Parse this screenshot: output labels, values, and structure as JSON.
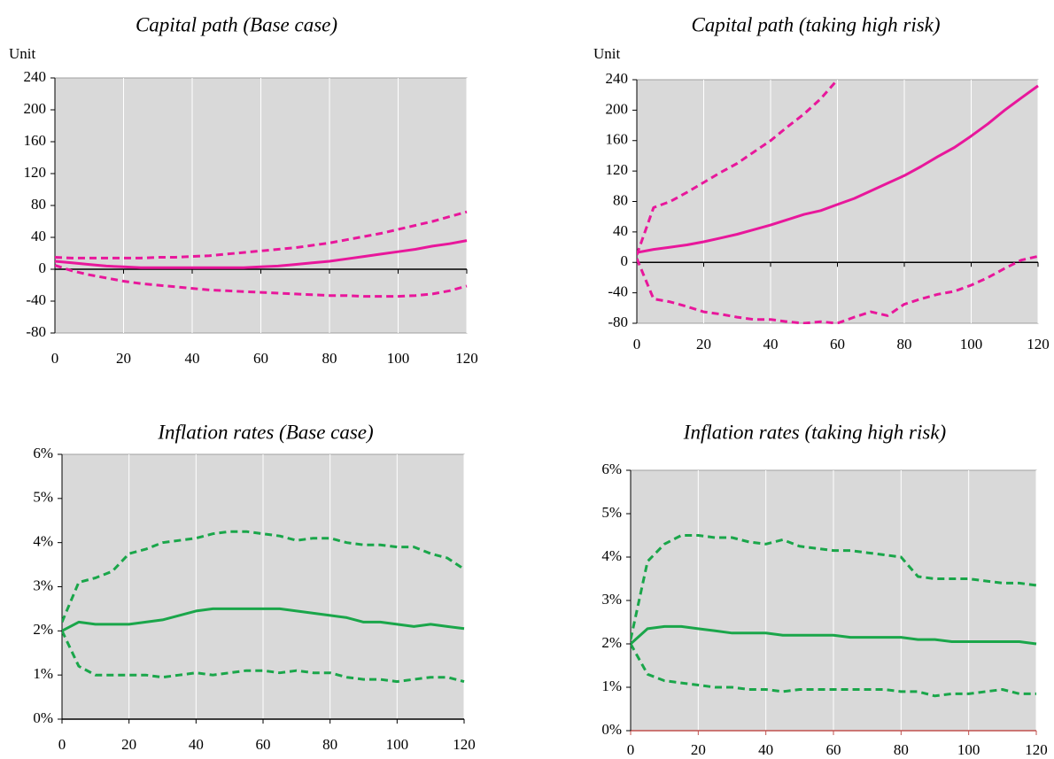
{
  "chart_data": [
    {
      "type": "line",
      "title": "Capital path (Base case)",
      "ylabel": "Unit",
      "x": [
        0,
        5,
        10,
        15,
        20,
        25,
        30,
        35,
        40,
        45,
        50,
        55,
        60,
        65,
        70,
        75,
        80,
        85,
        90,
        95,
        100,
        105,
        110,
        115,
        120
      ],
      "xlim": [
        0,
        120
      ],
      "xticks": [
        0,
        20,
        40,
        60,
        80,
        100,
        120
      ],
      "ylim": [
        -80,
        240
      ],
      "yticks": [
        -80,
        -40,
        0,
        40,
        80,
        120,
        160,
        200,
        240
      ],
      "grid": "x",
      "plot_bg": "#d9d9d9",
      "axis_color": "#000000",
      "series": [
        {
          "color": "#e8179b",
          "dashed": false,
          "values": [
            10,
            8,
            6,
            4,
            3,
            2,
            2,
            2,
            2,
            2,
            2,
            2,
            3,
            4,
            6,
            8,
            10,
            13,
            16,
            19,
            22,
            25,
            29,
            32,
            36
          ]
        },
        {
          "color": "#e8179b",
          "dashed": true,
          "values": [
            15,
            14,
            14,
            14,
            14,
            14,
            15,
            15,
            16,
            17,
            19,
            21,
            23,
            25,
            27,
            30,
            33,
            37,
            41,
            45,
            50,
            55,
            60,
            66,
            72
          ]
        },
        {
          "color": "#e8179b",
          "dashed": true,
          "values": [
            5,
            -2,
            -7,
            -11,
            -15,
            -18,
            -20,
            -22,
            -24,
            -26,
            -27,
            -28,
            -29,
            -30,
            -31,
            -32,
            -33,
            -33,
            -34,
            -34,
            -34,
            -33,
            -31,
            -27,
            -21
          ]
        }
      ]
    },
    {
      "type": "line",
      "title": "Capital path (taking high risk)",
      "ylabel": "Unit",
      "x": [
        0,
        5,
        10,
        15,
        20,
        25,
        30,
        35,
        40,
        45,
        50,
        55,
        60,
        65,
        70,
        75,
        80,
        85,
        90,
        95,
        100,
        105,
        110,
        115,
        120
      ],
      "xlim": [
        0,
        120
      ],
      "xticks": [
        0,
        20,
        40,
        60,
        80,
        100,
        120
      ],
      "ylim": [
        -80,
        240
      ],
      "yticks": [
        -80,
        -40,
        0,
        40,
        80,
        120,
        160,
        200,
        240
      ],
      "grid": "x",
      "plot_bg": "#d9d9d9",
      "axis_color": "#000000",
      "series": [
        {
          "color": "#e8179b",
          "dashed": false,
          "values": [
            13,
            17,
            20,
            23,
            27,
            32,
            37,
            43,
            49,
            56,
            63,
            68,
            76,
            84,
            94,
            104,
            114,
            126,
            139,
            151,
            166,
            182,
            200,
            216,
            232
          ]
        },
        {
          "color": "#e8179b",
          "dashed": true,
          "values": [
            10,
            72,
            80,
            92,
            105,
            118,
            130,
            145,
            160,
            178,
            195,
            215,
            240,
            null,
            null,
            null,
            null,
            null,
            null,
            null,
            null,
            null,
            null,
            null,
            null
          ]
        },
        {
          "color": "#e8179b",
          "dashed": true,
          "values": [
            5,
            -48,
            -52,
            -58,
            -65,
            -68,
            -72,
            -75,
            -75,
            -78,
            -80,
            -78,
            -80,
            -72,
            -65,
            -70,
            -55,
            -48,
            -42,
            -38,
            -30,
            -20,
            -8,
            3,
            8
          ]
        }
      ]
    },
    {
      "type": "line",
      "title": "Inflation rates (Base case)",
      "x": [
        0,
        5,
        10,
        15,
        20,
        25,
        30,
        35,
        40,
        45,
        50,
        55,
        60,
        65,
        70,
        75,
        80,
        85,
        90,
        95,
        100,
        105,
        110,
        115,
        120
      ],
      "xlim": [
        0,
        120
      ],
      "xticks": [
        0,
        20,
        40,
        60,
        80,
        100,
        120
      ],
      "ylim": [
        0,
        6
      ],
      "yticks": [
        {
          "value": 0,
          "label": "0%"
        },
        {
          "value": 1,
          "label": "1%"
        },
        {
          "value": 2,
          "label": "2%"
        },
        {
          "value": 3,
          "label": "3%"
        },
        {
          "value": 4,
          "label": "4%"
        },
        {
          "value": 5,
          "label": "5%"
        },
        {
          "value": 6,
          "label": "6%"
        }
      ],
      "grid": "x",
      "plot_bg": "#d9d9d9",
      "axis_color": "#000000",
      "series": [
        {
          "color": "#1aa64a",
          "dashed": false,
          "values": [
            2.0,
            2.2,
            2.15,
            2.15,
            2.15,
            2.2,
            2.25,
            2.35,
            2.45,
            2.5,
            2.5,
            2.5,
            2.5,
            2.5,
            2.45,
            2.4,
            2.35,
            2.3,
            2.2,
            2.2,
            2.15,
            2.1,
            2.15,
            2.1,
            2.05
          ]
        },
        {
          "color": "#1aa64a",
          "dashed": true,
          "values": [
            2.2,
            3.1,
            3.2,
            3.35,
            3.75,
            3.85,
            4.0,
            4.05,
            4.1,
            4.2,
            4.25,
            4.25,
            4.2,
            4.15,
            4.05,
            4.1,
            4.1,
            4.0,
            3.95,
            3.95,
            3.9,
            3.9,
            3.75,
            3.65,
            3.4
          ]
        },
        {
          "color": "#1aa64a",
          "dashed": true,
          "values": [
            2.0,
            1.2,
            1.0,
            1.0,
            1.0,
            1.0,
            0.95,
            1.0,
            1.05,
            1.0,
            1.05,
            1.1,
            1.1,
            1.05,
            1.1,
            1.05,
            1.05,
            0.95,
            0.9,
            0.9,
            0.85,
            0.9,
            0.95,
            0.95,
            0.85
          ]
        }
      ]
    },
    {
      "type": "line",
      "title": "Inflation rates (taking high risk)",
      "x": [
        0,
        5,
        10,
        15,
        20,
        25,
        30,
        35,
        40,
        45,
        50,
        55,
        60,
        65,
        70,
        75,
        80,
        85,
        90,
        95,
        100,
        105,
        110,
        115,
        120
      ],
      "xlim": [
        0,
        120
      ],
      "xticks": [
        0,
        20,
        40,
        60,
        80,
        100,
        120
      ],
      "ylim": [
        0,
        6
      ],
      "yticks": [
        {
          "value": 0,
          "label": "0%"
        },
        {
          "value": 1,
          "label": "1%"
        },
        {
          "value": 2,
          "label": "2%"
        },
        {
          "value": 3,
          "label": "3%"
        },
        {
          "value": 4,
          "label": "4%"
        },
        {
          "value": 5,
          "label": "5%"
        },
        {
          "value": 6,
          "label": "6%"
        }
      ],
      "grid": "x",
      "plot_bg": "#d9d9d9",
      "axis_color": "#c0504d",
      "series": [
        {
          "color": "#1aa64a",
          "dashed": false,
          "values": [
            2.0,
            2.35,
            2.4,
            2.4,
            2.35,
            2.3,
            2.25,
            2.25,
            2.25,
            2.2,
            2.2,
            2.2,
            2.2,
            2.15,
            2.15,
            2.15,
            2.15,
            2.1,
            2.1,
            2.05,
            2.05,
            2.05,
            2.05,
            2.05,
            2.0
          ]
        },
        {
          "color": "#1aa64a",
          "dashed": true,
          "values": [
            2.1,
            3.9,
            4.3,
            4.5,
            4.5,
            4.45,
            4.45,
            4.35,
            4.3,
            4.4,
            4.25,
            4.2,
            4.15,
            4.15,
            4.1,
            4.05,
            4.0,
            3.55,
            3.5,
            3.5,
            3.5,
            3.45,
            3.4,
            3.4,
            3.35
          ]
        },
        {
          "color": "#1aa64a",
          "dashed": true,
          "values": [
            2.0,
            1.3,
            1.15,
            1.1,
            1.05,
            1.0,
            1.0,
            0.95,
            0.95,
            0.9,
            0.95,
            0.95,
            0.95,
            0.95,
            0.95,
            0.95,
            0.9,
            0.9,
            0.8,
            0.85,
            0.85,
            0.9,
            0.95,
            0.85,
            0.85
          ]
        }
      ]
    }
  ]
}
